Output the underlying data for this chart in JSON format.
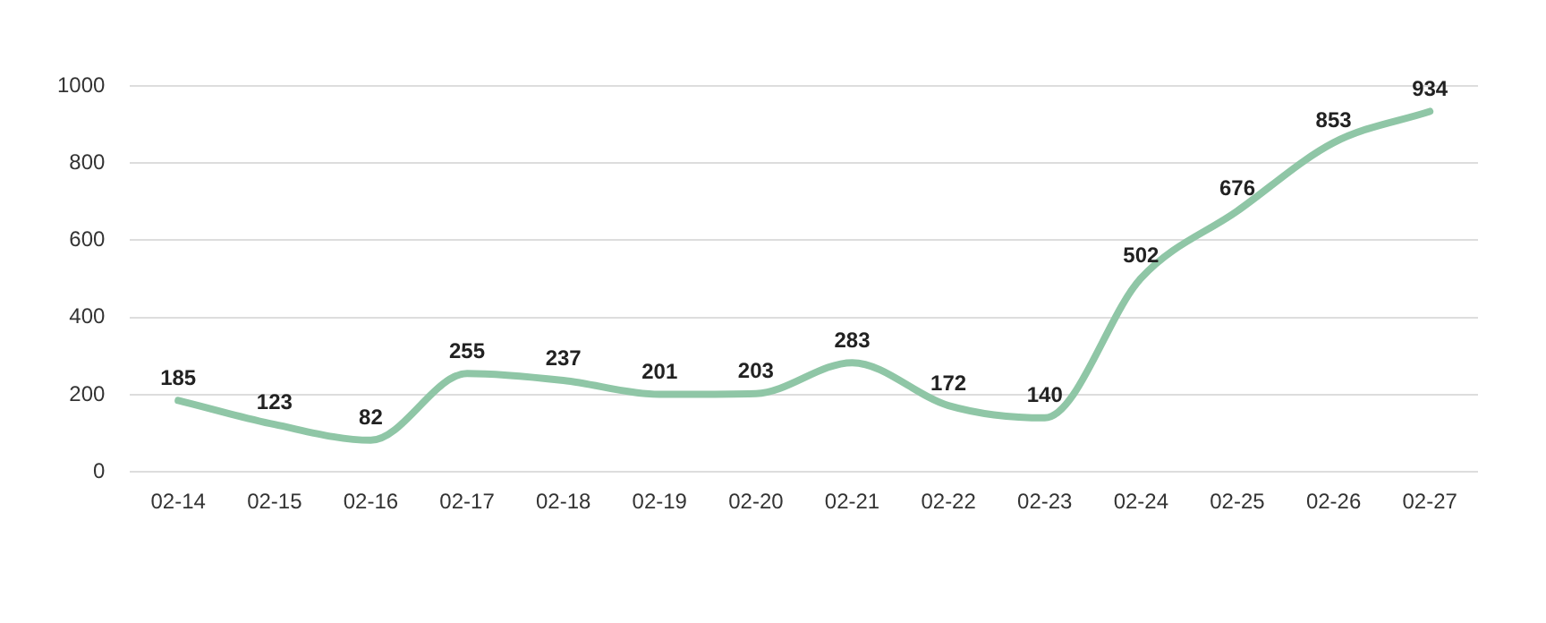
{
  "chart_data": {
    "type": "line",
    "categories": [
      "02-14",
      "02-15",
      "02-16",
      "02-17",
      "02-18",
      "02-19",
      "02-20",
      "02-21",
      "02-22",
      "02-23",
      "02-24",
      "02-25",
      "02-26",
      "02-27"
    ],
    "series": [
      {
        "color": "#8fc6a6",
        "values": [
          185,
          123,
          82,
          255,
          237,
          201,
          203,
          283,
          172,
          140,
          502,
          676,
          853,
          934
        ]
      }
    ],
    "ylim": [
      0,
      1000
    ],
    "yticks": [
      0,
      200,
      400,
      600,
      800,
      1000
    ],
    "grid": "y",
    "legend": false,
    "data_labels": true,
    "marker": "none",
    "line_style": "solid"
  }
}
